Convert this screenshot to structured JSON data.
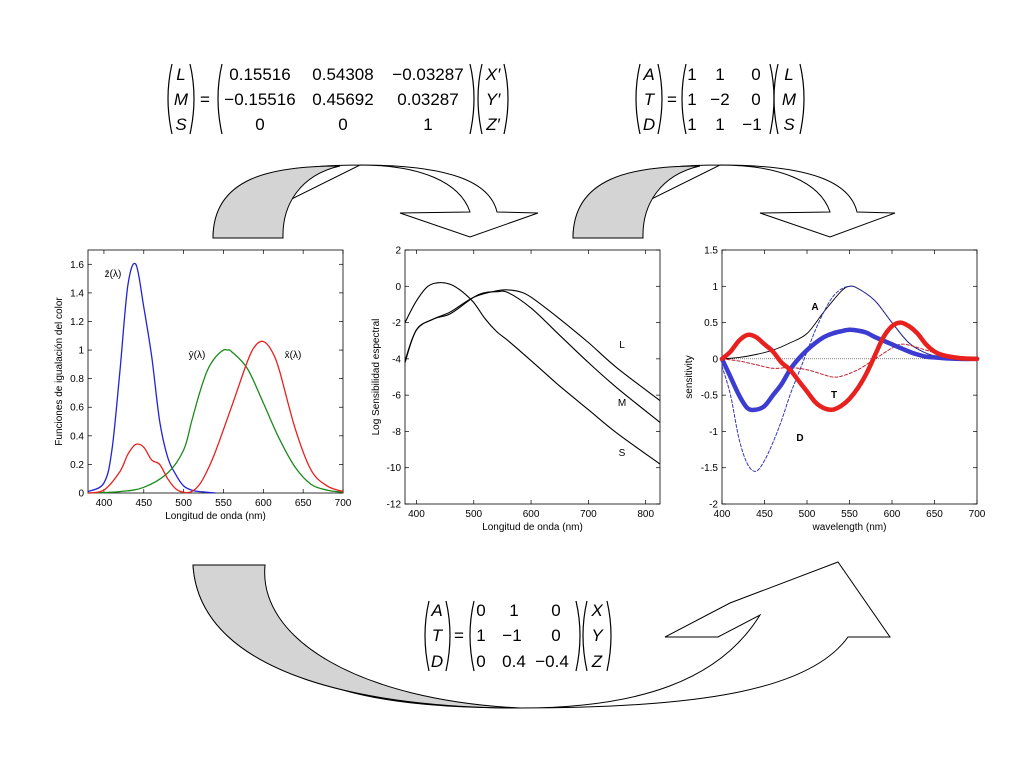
{
  "matrices": {
    "lms": {
      "left_vector": [
        "L",
        "M",
        "S"
      ],
      "rows": [
        [
          "0.15516",
          "0.54308",
          "−0.03287"
        ],
        [
          "−0.15516",
          "0.45692",
          "0.03287"
        ],
        [
          "0",
          "0",
          "1"
        ]
      ],
      "right_vector": [
        "X′",
        "Y′",
        "Z′"
      ]
    },
    "atd_lms": {
      "left_vector": [
        "A",
        "T",
        "D"
      ],
      "rows": [
        [
          "1",
          "1",
          "0"
        ],
        [
          "1",
          "−2",
          "0"
        ],
        [
          "1",
          "1",
          "−1"
        ]
      ],
      "right_vector": [
        "L",
        "M",
        "S"
      ]
    },
    "atd_xyz": {
      "left_vector": [
        "A",
        "T",
        "D"
      ],
      "rows": [
        [
          "0",
          "1",
          "0"
        ],
        [
          "1",
          "−1",
          "0"
        ],
        [
          "0",
          "0.4",
          "−0.4"
        ]
      ],
      "right_vector": [
        "X",
        "Y",
        "Z"
      ]
    },
    "equals": "="
  },
  "colors": {
    "arrow_fill": "#d4d4d4",
    "red": "#e8201e",
    "green": "#1a8a1a",
    "blue": "#2323d6",
    "thick_blue": "#3c3cd0",
    "dashed_blue": "#3535c0",
    "dashed_red": "#c02030"
  },
  "chart_data": [
    {
      "type": "line",
      "xlabel": "Longitud de onda (nm)",
      "ylabel": "Funciones de igualación del color",
      "xlim": [
        380,
        700
      ],
      "ylim": [
        0,
        1.7
      ],
      "xticks": [
        "400",
        "450",
        "500",
        "550",
        "600",
        "650",
        "700"
      ],
      "yticks": [
        "0",
        "0.2",
        "0.4",
        "0.6",
        "0.8",
        "1",
        "1.2",
        "1.4",
        "1.6"
      ],
      "series": [
        {
          "name": "z̄(λ)",
          "color": "blue",
          "x": [
            380,
            400,
            410,
            420,
            430,
            440,
            450,
            460,
            470,
            480,
            490,
            500,
            510,
            520,
            530,
            540
          ],
          "values": [
            0.01,
            0.07,
            0.3,
            0.85,
            1.45,
            1.6,
            1.3,
            0.95,
            0.5,
            0.25,
            0.13,
            0.05,
            0.02,
            0.01,
            0.005,
            0
          ]
        },
        {
          "name": "ȳ(λ)",
          "color": "green",
          "x": [
            380,
            420,
            450,
            480,
            500,
            510,
            520,
            530,
            540,
            550,
            555,
            560,
            580,
            600,
            620,
            640,
            660,
            680,
            700
          ],
          "values": [
            0,
            0.01,
            0.04,
            0.14,
            0.3,
            0.5,
            0.7,
            0.86,
            0.95,
            1.0,
            1.0,
            0.99,
            0.87,
            0.63,
            0.38,
            0.18,
            0.06,
            0.02,
            0.005
          ]
        },
        {
          "name": "x̄(λ)",
          "color": "red",
          "x": [
            380,
            400,
            420,
            430,
            440,
            450,
            460,
            470,
            480,
            490,
            500,
            510,
            520,
            530,
            540,
            560,
            580,
            590,
            600,
            610,
            620,
            640,
            660,
            680,
            700
          ],
          "values": [
            0,
            0.02,
            0.15,
            0.27,
            0.34,
            0.32,
            0.23,
            0.2,
            0.1,
            0.03,
            0.005,
            0.01,
            0.06,
            0.16,
            0.29,
            0.6,
            0.92,
            1.03,
            1.06,
            1.0,
            0.86,
            0.45,
            0.16,
            0.05,
            0.01
          ]
        }
      ]
    },
    {
      "type": "line",
      "xlabel": "Longitud de onda (nm)",
      "ylabel": "Log Sensibilidad espectral",
      "xlim": [
        380,
        825
      ],
      "ylim": [
        -12,
        2
      ],
      "xticks": [
        "400",
        "500",
        "600",
        "700",
        "800"
      ],
      "yticks": [
        "-12",
        "-10",
        "-8",
        "-6",
        "-4",
        "-2",
        "0",
        "2"
      ],
      "series": [
        {
          "name": "L",
          "x": [
            380,
            400,
            430,
            460,
            500,
            540,
            560,
            580,
            600,
            650,
            700,
            750,
            825
          ],
          "values": [
            -4.1,
            -2.4,
            -1.8,
            -1.4,
            -0.6,
            -0.25,
            -0.2,
            -0.3,
            -0.6,
            -1.8,
            -3.1,
            -4.5,
            -6.3
          ]
        },
        {
          "name": "M",
          "x": [
            380,
            400,
            430,
            460,
            500,
            520,
            540,
            560,
            600,
            650,
            700,
            750,
            825
          ],
          "values": [
            -4.2,
            -2.4,
            -1.8,
            -1.5,
            -0.6,
            -0.35,
            -0.3,
            -0.35,
            -1.2,
            -2.7,
            -4.2,
            -5.6,
            -7.5
          ]
        },
        {
          "name": "S",
          "x": [
            380,
            400,
            420,
            440,
            460,
            480,
            500,
            520,
            540,
            560,
            600,
            650,
            700,
            750,
            825
          ],
          "values": [
            -2.0,
            -0.8,
            0.0,
            0.2,
            0.1,
            -0.3,
            -0.9,
            -1.8,
            -2.5,
            -3.0,
            -4.1,
            -5.5,
            -6.8,
            -8.1,
            -9.8
          ]
        }
      ],
      "labels": [
        "L",
        "M",
        "S"
      ]
    },
    {
      "type": "line",
      "xlabel": "wavelength (nm)",
      "ylabel": "sensitivity",
      "xlim": [
        400,
        700
      ],
      "ylim": [
        -2,
        1.5
      ],
      "xticks": [
        "400",
        "450",
        "500",
        "550",
        "600",
        "650",
        "700"
      ],
      "yticks": [
        "-2",
        "-1.5",
        "-1",
        "-0.5",
        "0",
        "0.5",
        "1",
        "1.5"
      ],
      "series": [
        {
          "name": "T",
          "style": "thick-red",
          "x": [
            400,
            410,
            420,
            430,
            440,
            450,
            460,
            470,
            480,
            490,
            500,
            510,
            520,
            530,
            540,
            550,
            560,
            570,
            580,
            590,
            600,
            610,
            620,
            630,
            640,
            650,
            660,
            680,
            700
          ],
          "values": [
            0.0,
            0.1,
            0.25,
            0.33,
            0.3,
            0.2,
            0.1,
            -0.05,
            -0.15,
            -0.3,
            -0.45,
            -0.6,
            -0.68,
            -0.7,
            -0.65,
            -0.55,
            -0.4,
            -0.2,
            0.05,
            0.3,
            0.45,
            0.5,
            0.45,
            0.35,
            0.2,
            0.1,
            0.05,
            0.01,
            0.0
          ]
        },
        {
          "name": "D",
          "style": "thick-blue",
          "x": [
            400,
            410,
            420,
            430,
            440,
            450,
            460,
            470,
            480,
            490,
            500,
            510,
            520,
            530,
            540,
            550,
            560,
            570,
            580,
            590,
            600,
            610,
            620,
            630,
            640,
            650,
            660,
            680,
            700
          ],
          "values": [
            0.0,
            -0.25,
            -0.5,
            -0.68,
            -0.7,
            -0.65,
            -0.5,
            -0.35,
            -0.15,
            0.0,
            0.12,
            0.22,
            0.3,
            0.35,
            0.38,
            0.4,
            0.39,
            0.36,
            0.3,
            0.25,
            0.2,
            0.15,
            0.1,
            0.06,
            0.03,
            0.02,
            0.01,
            0.0,
            0.0
          ]
        },
        {
          "name": "A",
          "style": "thin-black",
          "x": [
            400,
            420,
            440,
            460,
            480,
            500,
            520,
            540,
            550,
            560,
            580,
            600,
            620,
            640,
            660,
            680,
            700
          ],
          "values": [
            0.0,
            0.02,
            0.06,
            0.12,
            0.22,
            0.35,
            0.65,
            0.93,
            1.0,
            0.97,
            0.8,
            0.5,
            0.22,
            0.08,
            0.02,
            0.01,
            0.0
          ]
        },
        {
          "name": "",
          "style": "dashed-blue",
          "x": [
            400,
            410,
            420,
            430,
            440,
            450,
            460,
            470,
            480,
            490,
            500,
            510,
            520,
            530,
            540,
            550,
            560,
            580,
            600,
            620,
            640,
            660,
            700
          ],
          "values": [
            -0.1,
            -0.5,
            -1.1,
            -1.45,
            -1.55,
            -1.4,
            -1.15,
            -0.85,
            -0.5,
            -0.2,
            0.1,
            0.4,
            0.65,
            0.85,
            0.96,
            1.0,
            0.97,
            0.8,
            0.5,
            0.22,
            0.08,
            0.02,
            0.0
          ]
        },
        {
          "name": "",
          "style": "dashed-red",
          "x": [
            400,
            420,
            440,
            460,
            480,
            500,
            520,
            530,
            540,
            560,
            580,
            600,
            610,
            620,
            640,
            660,
            680,
            700
          ],
          "values": [
            0.0,
            -0.03,
            -0.08,
            -0.13,
            -0.12,
            -0.15,
            -0.22,
            -0.25,
            -0.24,
            -0.15,
            0.0,
            0.15,
            0.2,
            0.19,
            0.12,
            0.05,
            0.02,
            0.0
          ]
        }
      ],
      "labels": [
        "A",
        "T",
        "D"
      ]
    }
  ]
}
